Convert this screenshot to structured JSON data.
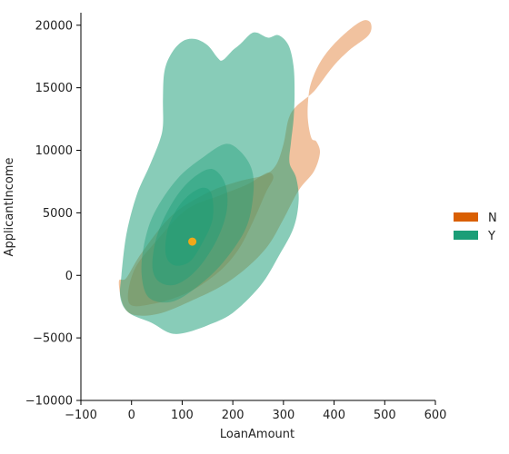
{
  "chart_data": {
    "type": "kde-contour",
    "xlabel": "LoanAmount",
    "ylabel": "ApplicantIncome",
    "xlim": [
      -100,
      600
    ],
    "ylim": [
      -10000,
      21000
    ],
    "xticks": [
      -100,
      0,
      100,
      200,
      300,
      400,
      500,
      600
    ],
    "yticks": [
      -10000,
      -5000,
      0,
      5000,
      10000,
      15000,
      20000
    ],
    "xtick_labels": [
      "−100",
      "0",
      "100",
      "200",
      "300",
      "400",
      "500",
      "600"
    ],
    "ytick_labels": [
      "−10000",
      "−5000",
      "0",
      "5000",
      "10000",
      "15000",
      "20000"
    ],
    "legend": {
      "placement": "right",
      "entries": [
        {
          "label": "N",
          "color": "#d95f02"
        },
        {
          "label": "Y",
          "color": "#1b9e77"
        }
      ]
    },
    "series": [
      {
        "name": "N",
        "color": "#d95f02",
        "levels": [
          {
            "opacity": 0.38,
            "points": [
              [
                -25,
                -500
              ],
              [
                -15,
                -2500
              ],
              [
                10,
                -3200
              ],
              [
                60,
                -3000
              ],
              [
                120,
                -2000
              ],
              [
                180,
                -800
              ],
              [
                230,
                700
              ],
              [
                270,
                2400
              ],
              [
                300,
                4500
              ],
              [
                330,
                6800
              ],
              [
                360,
                8300
              ],
              [
                372,
                9800
              ],
              [
                365,
                10700
              ],
              [
                355,
                11000
              ],
              [
                348,
                12600
              ],
              [
                350,
                14500
              ],
              [
                358,
                15800
              ],
              [
                375,
                17200
              ],
              [
                400,
                18500
              ],
              [
                435,
                19800
              ],
              [
                460,
                20400
              ],
              [
                473,
                20100
              ],
              [
                468,
                19200
              ],
              [
                430,
                18000
              ],
              [
                400,
                16800
              ],
              [
                370,
                15200
              ],
              [
                355,
                14500
              ],
              [
                325,
                13500
              ],
              [
                310,
                12500
              ],
              [
                300,
                10500
              ],
              [
                285,
                8800
              ],
              [
                260,
                8000
              ],
              [
                210,
                7500
              ],
              [
                150,
                6600
              ],
              [
                80,
                4800
              ],
              [
                20,
                1800
              ],
              [
                -10,
                -200
              ]
            ]
          },
          {
            "opacity": 0.3,
            "points": [
              [
                -5,
                -2200
              ],
              [
                40,
                -2300
              ],
              [
                110,
                -1400
              ],
              [
                170,
                200
              ],
              [
                210,
                2000
              ],
              [
                240,
                4300
              ],
              [
                265,
                6600
              ],
              [
                280,
                7800
              ],
              [
                268,
                8200
              ],
              [
                230,
                7300
              ],
              [
                175,
                6400
              ],
              [
                110,
                5300
              ],
              [
                50,
                2800
              ],
              [
                5,
                400
              ]
            ]
          }
        ]
      },
      {
        "name": "Y",
        "color": "#1b9e77",
        "levels": [
          {
            "opacity": 0.52,
            "points": [
              [
                -20,
                0
              ],
              [
                -22,
                -1800
              ],
              [
                -5,
                -3000
              ],
              [
                40,
                -3800
              ],
              [
                75,
                -4600
              ],
              [
                105,
                -4600
              ],
              [
                150,
                -4000
              ],
              [
                200,
                -3000
              ],
              [
                255,
                -800
              ],
              [
                290,
                1500
              ],
              [
                320,
                3800
              ],
              [
                330,
                6000
              ],
              [
                325,
                7800
              ],
              [
                312,
                9000
              ],
              [
                315,
                10700
              ],
              [
                320,
                12500
              ],
              [
                322,
                14500
              ],
              [
                320,
                16700
              ],
              [
                310,
                18400
              ],
              [
                290,
                19200
              ],
              [
                270,
                19000
              ],
              [
                248,
                19400
              ],
              [
                235,
                19300
              ],
              [
                215,
                18500
              ],
              [
                200,
                18000
              ],
              [
                180,
                17200
              ],
              [
                170,
                17400
              ],
              [
                150,
                18400
              ],
              [
                125,
                18900
              ],
              [
                100,
                18700
              ],
              [
                78,
                17700
              ],
              [
                65,
                16300
              ],
              [
                62,
                14200
              ],
              [
                62,
                12000
              ],
              [
                55,
                10700
              ],
              [
                35,
                8700
              ],
              [
                10,
                6400
              ],
              [
                -10,
                3300
              ]
            ]
          },
          {
            "opacity": 0.4,
            "points": [
              [
                20,
                0
              ],
              [
                35,
                -1800
              ],
              [
                80,
                -2100
              ],
              [
                130,
                -900
              ],
              [
                180,
                1000
              ],
              [
                225,
                3700
              ],
              [
                240,
                6300
              ],
              [
                238,
                8400
              ],
              [
                215,
                9900
              ],
              [
                185,
                10500
              ],
              [
                140,
                9400
              ],
              [
                90,
                7700
              ],
              [
                45,
                5000
              ],
              [
                25,
                2500
              ]
            ]
          },
          {
            "opacity": 0.42,
            "points": [
              [
                42,
                400
              ],
              [
                58,
                -600
              ],
              [
                90,
                -700
              ],
              [
                130,
                500
              ],
              [
                168,
                2800
              ],
              [
                188,
                5200
              ],
              [
                185,
                7300
              ],
              [
                160,
                8500
              ],
              [
                125,
                7900
              ],
              [
                90,
                6400
              ],
              [
                60,
                4200
              ],
              [
                45,
                2300
              ]
            ]
          },
          {
            "opacity": 0.45,
            "points": [
              [
                68,
                1600
              ],
              [
                85,
                800
              ],
              [
                115,
                1100
              ],
              [
                140,
                2600
              ],
              [
                160,
                4500
              ],
              [
                158,
                6500
              ],
              [
                140,
                7000
              ],
              [
                110,
                6300
              ],
              [
                85,
                5000
              ],
              [
                70,
                3400
              ]
            ]
          }
        ]
      }
    ],
    "markers": [
      {
        "x": 120,
        "y": 2700,
        "color": "#f0a818"
      }
    ]
  }
}
